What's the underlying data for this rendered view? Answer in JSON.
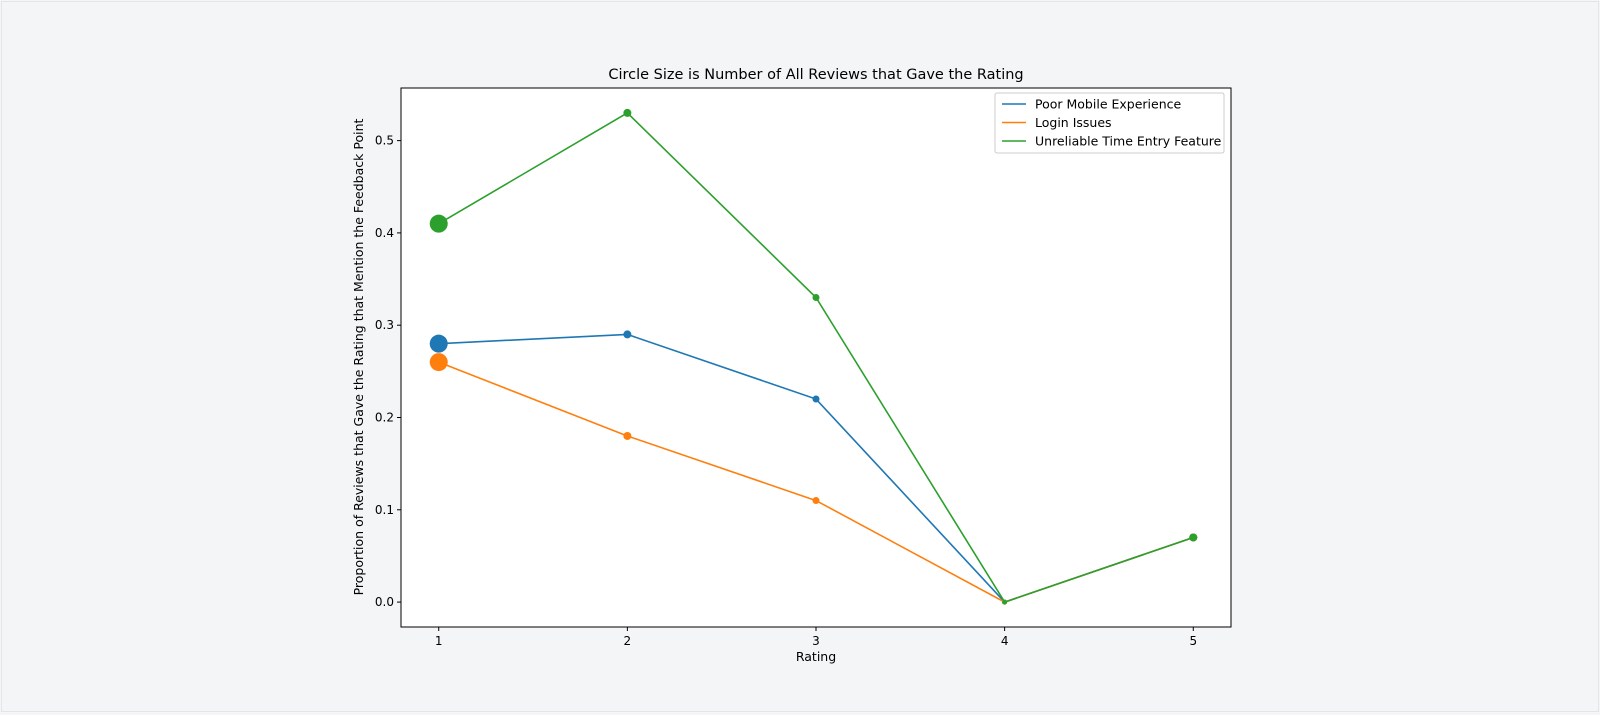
{
  "chart_data": {
    "type": "line",
    "title": "Circle Size is Number of All Reviews that Gave the Rating",
    "xlabel": "Rating",
    "ylabel": "Proportion of Reviews that Gave the Rating that Mention the Feedback Point",
    "x": [
      1,
      2,
      3,
      4,
      5
    ],
    "x_ticks": [
      "1",
      "2",
      "3",
      "4",
      "5"
    ],
    "y_ticks": [
      "0.0",
      "0.1",
      "0.2",
      "0.3",
      "0.4",
      "0.5"
    ],
    "xlim": [
      0.8,
      5.2
    ],
    "ylim": [
      -0.027,
      0.557
    ],
    "marker_sizes": [
      17,
      7,
      6,
      4,
      7
    ],
    "legend_position": "upper right",
    "grid": false,
    "series": [
      {
        "name": "Poor Mobile Experience",
        "color": "#1f77b4",
        "values": [
          0.28,
          0.29,
          0.22,
          0.0,
          0.07
        ]
      },
      {
        "name": "Login Issues",
        "color": "#ff7f0e",
        "values": [
          0.26,
          0.18,
          0.11,
          0.0,
          0.07
        ]
      },
      {
        "name": "Unreliable Time Entry Feature",
        "color": "#2ca02c",
        "values": [
          0.41,
          0.53,
          0.33,
          0.0,
          0.07
        ]
      }
    ]
  }
}
